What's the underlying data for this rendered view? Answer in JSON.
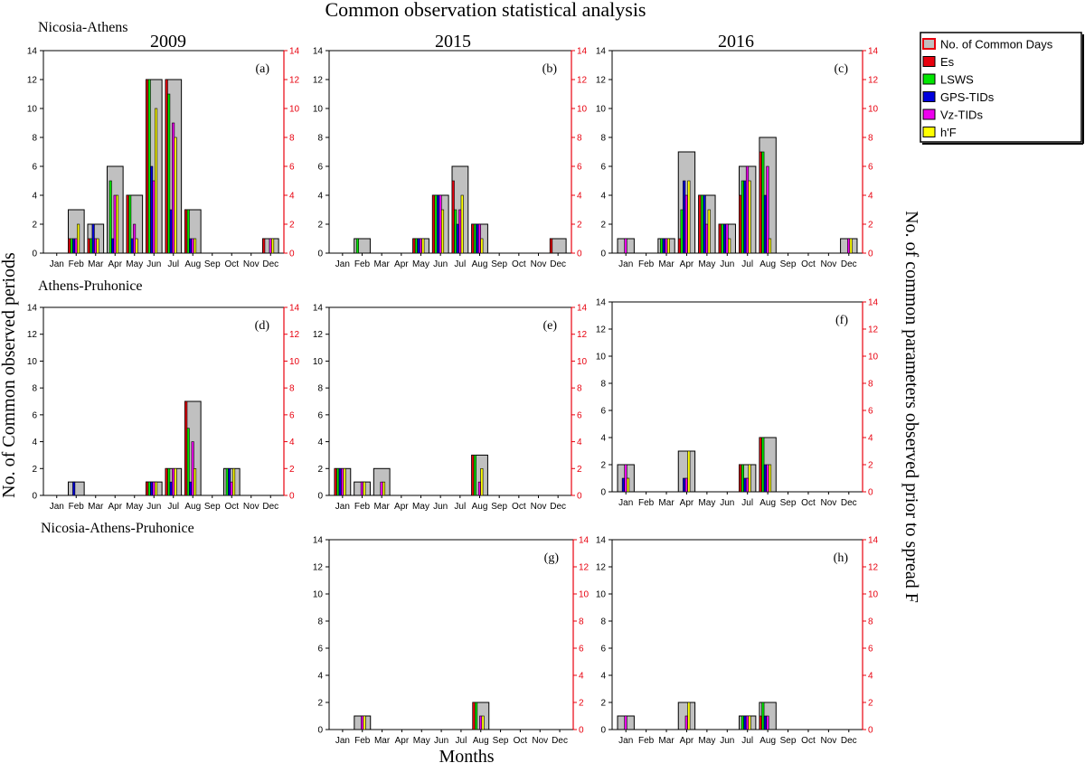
{
  "figure": {
    "title": "Common observation statistical analysis",
    "xlabel": "Months",
    "ylabel_left": "No. of Common observed periods",
    "ylabel_right": "No. of common parameters observed prior to spread F",
    "row_labels": [
      "Nicosia-Athens",
      "Athens-Pruhonice",
      "Nicosia-Athens-Pruhonice"
    ],
    "column_titles": [
      "2009",
      "2015",
      "2016"
    ],
    "legend": [
      {
        "name": "No. of Common Days",
        "color": "#c0c0c0"
      },
      {
        "name": "Es",
        "color": "#e8000e"
      },
      {
        "name": "LSWS",
        "color": "#00e600"
      },
      {
        "name": "GPS-TIDs",
        "color": "#0000dd"
      },
      {
        "name": "Vz-TIDs",
        "color": "#ee00ee"
      },
      {
        "name": "h'F",
        "color": "#ffff00"
      }
    ],
    "colors": {
      "left_axis": "#000000",
      "right_axis": "#e8000e",
      "outline": "#000000"
    }
  },
  "chart_data": [
    {
      "type": "bar",
      "panel": "(a)",
      "row": "Nicosia-Athens",
      "year": "2009",
      "categories": [
        "Jan",
        "Feb",
        "Mar",
        "Apr",
        "May",
        "Jun",
        "Jul",
        "Aug",
        "Sep",
        "Oct",
        "Nov",
        "Dec"
      ],
      "ylim": [
        0,
        14
      ],
      "yticks": [
        0,
        2,
        4,
        6,
        8,
        10,
        12,
        14
      ],
      "series": [
        {
          "name": "No. of Common Days",
          "values": [
            0,
            3,
            2,
            6,
            4,
            12,
            12,
            3,
            0,
            0,
            0,
            1
          ]
        },
        {
          "name": "Es",
          "values": [
            0,
            1,
            1,
            0,
            4,
            12,
            12,
            3,
            0,
            0,
            0,
            1
          ]
        },
        {
          "name": "LSWS",
          "values": [
            0,
            1,
            1,
            5,
            4,
            12,
            11,
            3,
            0,
            0,
            0,
            0
          ]
        },
        {
          "name": "GPS-TIDs",
          "values": [
            0,
            1,
            2,
            1,
            1,
            6,
            3,
            1,
            0,
            0,
            0,
            0
          ]
        },
        {
          "name": "Vz-TIDs",
          "values": [
            0,
            1,
            1,
            4,
            2,
            5,
            9,
            1,
            0,
            0,
            0,
            1
          ]
        },
        {
          "name": "h'F",
          "values": [
            0,
            2,
            1,
            4,
            1,
            10,
            8,
            1,
            0,
            0,
            0,
            1
          ]
        }
      ]
    },
    {
      "type": "bar",
      "panel": "(b)",
      "row": "Nicosia-Athens",
      "year": "2015",
      "categories": [
        "Jan",
        "Feb",
        "Mar",
        "Apr",
        "May",
        "Jun",
        "Jul",
        "Aug",
        "Sep",
        "Oct",
        "Nov",
        "Dec"
      ],
      "ylim": [
        0,
        14
      ],
      "yticks": [
        0,
        2,
        4,
        6,
        8,
        10,
        12,
        14
      ],
      "series": [
        {
          "name": "No. of Common Days",
          "values": [
            0,
            1,
            0,
            0,
            1,
            4,
            6,
            2,
            0,
            0,
            0,
            1
          ]
        },
        {
          "name": "Es",
          "values": [
            0,
            0,
            0,
            0,
            1,
            4,
            5,
            2,
            0,
            0,
            0,
            1
          ]
        },
        {
          "name": "LSWS",
          "values": [
            0,
            1,
            0,
            0,
            1,
            4,
            3,
            2,
            0,
            0,
            0,
            0
          ]
        },
        {
          "name": "GPS-TIDs",
          "values": [
            0,
            0,
            0,
            0,
            1,
            4,
            2,
            2,
            0,
            0,
            0,
            0
          ]
        },
        {
          "name": "Vz-TIDs",
          "values": [
            0,
            0,
            0,
            0,
            1,
            4,
            3,
            2,
            0,
            0,
            0,
            0
          ]
        },
        {
          "name": "h'F",
          "values": [
            0,
            0,
            0,
            0,
            1,
            3,
            4,
            1,
            0,
            0,
            0,
            0
          ]
        }
      ]
    },
    {
      "type": "bar",
      "panel": "(c)",
      "row": "Nicosia-Athens",
      "year": "2016",
      "categories": [
        "Jan",
        "Feb",
        "Mar",
        "Apr",
        "May",
        "Jun",
        "Jul",
        "Aug",
        "Sep",
        "Oct",
        "Nov",
        "Dec"
      ],
      "ylim": [
        0,
        14
      ],
      "yticks": [
        0,
        2,
        4,
        6,
        8,
        10,
        12,
        14
      ],
      "series": [
        {
          "name": "No. of Common Days",
          "values": [
            1,
            0,
            1,
            7,
            4,
            2,
            6,
            8,
            0,
            0,
            0,
            1
          ]
        },
        {
          "name": "Es",
          "values": [
            0,
            0,
            0,
            1,
            4,
            2,
            4,
            7,
            0,
            0,
            0,
            0
          ]
        },
        {
          "name": "LSWS",
          "values": [
            0,
            0,
            1,
            3,
            4,
            2,
            5,
            7,
            0,
            0,
            0,
            0
          ]
        },
        {
          "name": "GPS-TIDs",
          "values": [
            0,
            0,
            1,
            5,
            4,
            2,
            5,
            4,
            0,
            0,
            0,
            0
          ]
        },
        {
          "name": "Vz-TIDs",
          "values": [
            1,
            0,
            1,
            4,
            2,
            2,
            6,
            6,
            0,
            0,
            0,
            1
          ]
        },
        {
          "name": "h'F",
          "values": [
            0,
            0,
            1,
            5,
            3,
            1,
            5,
            1,
            0,
            0,
            0,
            1
          ]
        }
      ]
    },
    {
      "type": "bar",
      "panel": "(d)",
      "row": "Athens-Pruhonice",
      "year": "2009",
      "categories": [
        "Jan",
        "Feb",
        "Mar",
        "Apr",
        "May",
        "Jun",
        "Jul",
        "Aug",
        "Sep",
        "Oct",
        "Nov",
        "Dec"
      ],
      "ylim": [
        0,
        14
      ],
      "yticks": [
        0,
        2,
        4,
        6,
        8,
        10,
        12,
        14
      ],
      "series": [
        {
          "name": "No. of Common Days",
          "values": [
            0,
            1,
            0,
            0,
            0,
            1,
            2,
            7,
            0,
            2,
            0,
            0
          ]
        },
        {
          "name": "Es",
          "values": [
            0,
            0,
            0,
            0,
            0,
            1,
            2,
            7,
            0,
            0,
            0,
            0
          ]
        },
        {
          "name": "LSWS",
          "values": [
            0,
            0,
            0,
            0,
            0,
            1,
            2,
            5,
            0,
            2,
            0,
            0
          ]
        },
        {
          "name": "GPS-TIDs",
          "values": [
            0,
            1,
            0,
            0,
            0,
            1,
            1,
            1,
            0,
            2,
            0,
            0
          ]
        },
        {
          "name": "Vz-TIDs",
          "values": [
            0,
            0,
            0,
            0,
            0,
            1,
            2,
            4,
            0,
            1,
            0,
            0
          ]
        },
        {
          "name": "h'F",
          "values": [
            0,
            0,
            0,
            0,
            0,
            1,
            2,
            2,
            0,
            2,
            0,
            0
          ]
        }
      ]
    },
    {
      "type": "bar",
      "panel": "(e)",
      "row": "Athens-Pruhonice",
      "year": "2015",
      "categories": [
        "Jan",
        "Feb",
        "Mar",
        "Apr",
        "May",
        "Jun",
        "Jul",
        "Aug",
        "Sep",
        "Oct",
        "Nov",
        "Dec"
      ],
      "ylim": [
        0,
        14
      ],
      "yticks": [
        0,
        2,
        4,
        6,
        8,
        10,
        12,
        14
      ],
      "series": [
        {
          "name": "No. of Common Days",
          "values": [
            2,
            1,
            2,
            0,
            0,
            0,
            0,
            3,
            0,
            0,
            0,
            0
          ]
        },
        {
          "name": "Es",
          "values": [
            2,
            0,
            0,
            0,
            0,
            0,
            0,
            3,
            0,
            0,
            0,
            0
          ]
        },
        {
          "name": "LSWS",
          "values": [
            2,
            0,
            0,
            0,
            0,
            0,
            0,
            3,
            0,
            0,
            0,
            0
          ]
        },
        {
          "name": "GPS-TIDs",
          "values": [
            2,
            0,
            0,
            0,
            0,
            0,
            0,
            0,
            0,
            0,
            0,
            0
          ]
        },
        {
          "name": "Vz-TIDs",
          "values": [
            2,
            1,
            1,
            0,
            0,
            0,
            0,
            1,
            0,
            0,
            0,
            0
          ]
        },
        {
          "name": "h'F",
          "values": [
            2,
            1,
            1,
            0,
            0,
            0,
            0,
            2,
            0,
            0,
            0,
            0
          ]
        }
      ]
    },
    {
      "type": "bar",
      "panel": "(f)",
      "row": "Athens-Pruhonice",
      "year": "2016",
      "categories": [
        "Jan",
        "Feb",
        "Mar",
        "Apr",
        "May",
        "Jun",
        "Jul",
        "Aug",
        "Sep",
        "Oct",
        "Nov",
        "Dec"
      ],
      "ylim": [
        0,
        14
      ],
      "yticks": [
        0,
        2,
        4,
        6,
        8,
        10,
        12,
        14
      ],
      "series": [
        {
          "name": "No. of Common Days",
          "values": [
            2,
            0,
            0,
            3,
            0,
            0,
            2,
            4,
            0,
            0,
            0,
            0
          ]
        },
        {
          "name": "Es",
          "values": [
            0,
            0,
            0,
            0,
            0,
            0,
            2,
            4,
            0,
            0,
            0,
            0
          ]
        },
        {
          "name": "LSWS",
          "values": [
            0,
            0,
            0,
            0,
            0,
            0,
            2,
            4,
            0,
            0,
            0,
            0
          ]
        },
        {
          "name": "GPS-TIDs",
          "values": [
            1,
            0,
            0,
            1,
            0,
            0,
            1,
            2,
            0,
            0,
            0,
            0
          ]
        },
        {
          "name": "Vz-TIDs",
          "values": [
            2,
            0,
            0,
            1,
            0,
            0,
            1,
            2,
            0,
            0,
            0,
            0
          ]
        },
        {
          "name": "h'F",
          "values": [
            1,
            0,
            0,
            3,
            0,
            0,
            2,
            2,
            0,
            0,
            0,
            0
          ]
        }
      ]
    },
    {
      "type": "bar",
      "panel": "(g)",
      "row": "Nicosia-Athens-Pruhonice",
      "year": "2015",
      "categories": [
        "Jan",
        "Feb",
        "Mar",
        "Apr",
        "May",
        "Jun",
        "Jul",
        "Aug",
        "Sep",
        "Oct",
        "Nov",
        "Dec"
      ],
      "ylim": [
        0,
        14
      ],
      "yticks": [
        0,
        2,
        4,
        6,
        8,
        10,
        12,
        14
      ],
      "series": [
        {
          "name": "No. of Common Days",
          "values": [
            0,
            1,
            0,
            0,
            0,
            0,
            0,
            2,
            0,
            0,
            0,
            0
          ]
        },
        {
          "name": "Es",
          "values": [
            0,
            0,
            0,
            0,
            0,
            0,
            0,
            2,
            0,
            0,
            0,
            0
          ]
        },
        {
          "name": "LSWS",
          "values": [
            0,
            0,
            0,
            0,
            0,
            0,
            0,
            2,
            0,
            0,
            0,
            0
          ]
        },
        {
          "name": "GPS-TIDs",
          "values": [
            0,
            0,
            0,
            0,
            0,
            0,
            0,
            0,
            0,
            0,
            0,
            0
          ]
        },
        {
          "name": "Vz-TIDs",
          "values": [
            0,
            1,
            0,
            0,
            0,
            0,
            0,
            1,
            0,
            0,
            0,
            0
          ]
        },
        {
          "name": "h'F",
          "values": [
            0,
            1,
            0,
            0,
            0,
            0,
            0,
            1,
            0,
            0,
            0,
            0
          ]
        }
      ]
    },
    {
      "type": "bar",
      "panel": "(h)",
      "row": "Nicosia-Athens-Pruhonice",
      "year": "2016",
      "categories": [
        "Jan",
        "Feb",
        "Mar",
        "Apr",
        "May",
        "Jun",
        "Jul",
        "Aug",
        "Sep",
        "Oct",
        "Nov",
        "Dec"
      ],
      "ylim": [
        0,
        14
      ],
      "yticks": [
        0,
        2,
        4,
        6,
        8,
        10,
        12,
        14
      ],
      "series": [
        {
          "name": "No. of Common Days",
          "values": [
            1,
            0,
            0,
            2,
            0,
            0,
            1,
            2,
            0,
            0,
            0,
            0
          ]
        },
        {
          "name": "Es",
          "values": [
            0,
            0,
            0,
            0,
            0,
            0,
            0,
            1,
            0,
            0,
            0,
            0
          ]
        },
        {
          "name": "LSWS",
          "values": [
            0,
            0,
            0,
            0,
            0,
            0,
            1,
            2,
            0,
            0,
            0,
            0
          ]
        },
        {
          "name": "GPS-TIDs",
          "values": [
            0,
            0,
            0,
            0,
            0,
            0,
            1,
            1,
            0,
            0,
            0,
            0
          ]
        },
        {
          "name": "Vz-TIDs",
          "values": [
            1,
            0,
            0,
            1,
            0,
            0,
            1,
            1,
            0,
            0,
            0,
            0
          ]
        },
        {
          "name": "h'F",
          "values": [
            0,
            0,
            0,
            2,
            0,
            0,
            1,
            0,
            0,
            0,
            0,
            0
          ]
        }
      ]
    }
  ]
}
